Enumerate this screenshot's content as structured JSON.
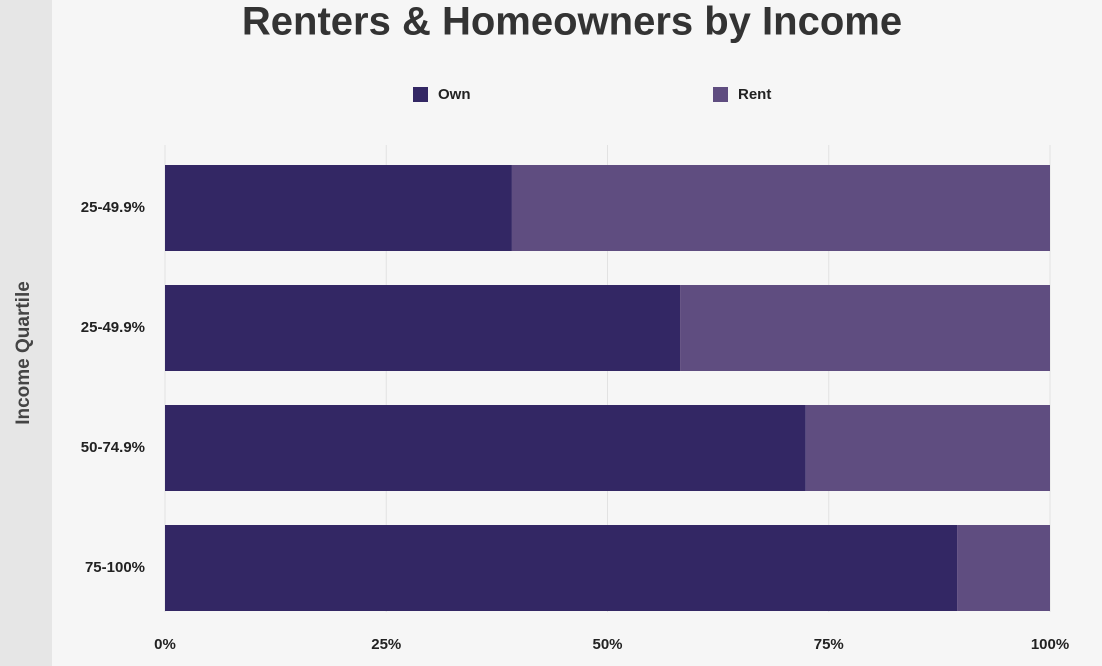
{
  "chart_data": {
    "type": "stacked-barh",
    "title": "Renters & Homeowners by Income",
    "y_label": "Income Quartile",
    "categories": [
      "25-49.9%",
      "25-49.9%",
      "50-74.9%",
      "75-100%"
    ],
    "series": [
      {
        "name": "Own",
        "color": "#332764",
        "values": [
          39.2,
          58.2,
          72.4,
          89.5
        ]
      },
      {
        "name": "Rent",
        "color": "#5f4d80",
        "values": [
          60.8,
          41.8,
          27.6,
          10.5
        ]
      }
    ],
    "xlim": [
      0,
      100
    ],
    "xticks": [
      {
        "value": 0,
        "label": "0%"
      },
      {
        "value": 25,
        "label": "25%"
      },
      {
        "value": 50,
        "label": "50%"
      },
      {
        "value": 75,
        "label": "75%"
      },
      {
        "value": 100,
        "label": "100%"
      }
    ],
    "grid": true
  }
}
